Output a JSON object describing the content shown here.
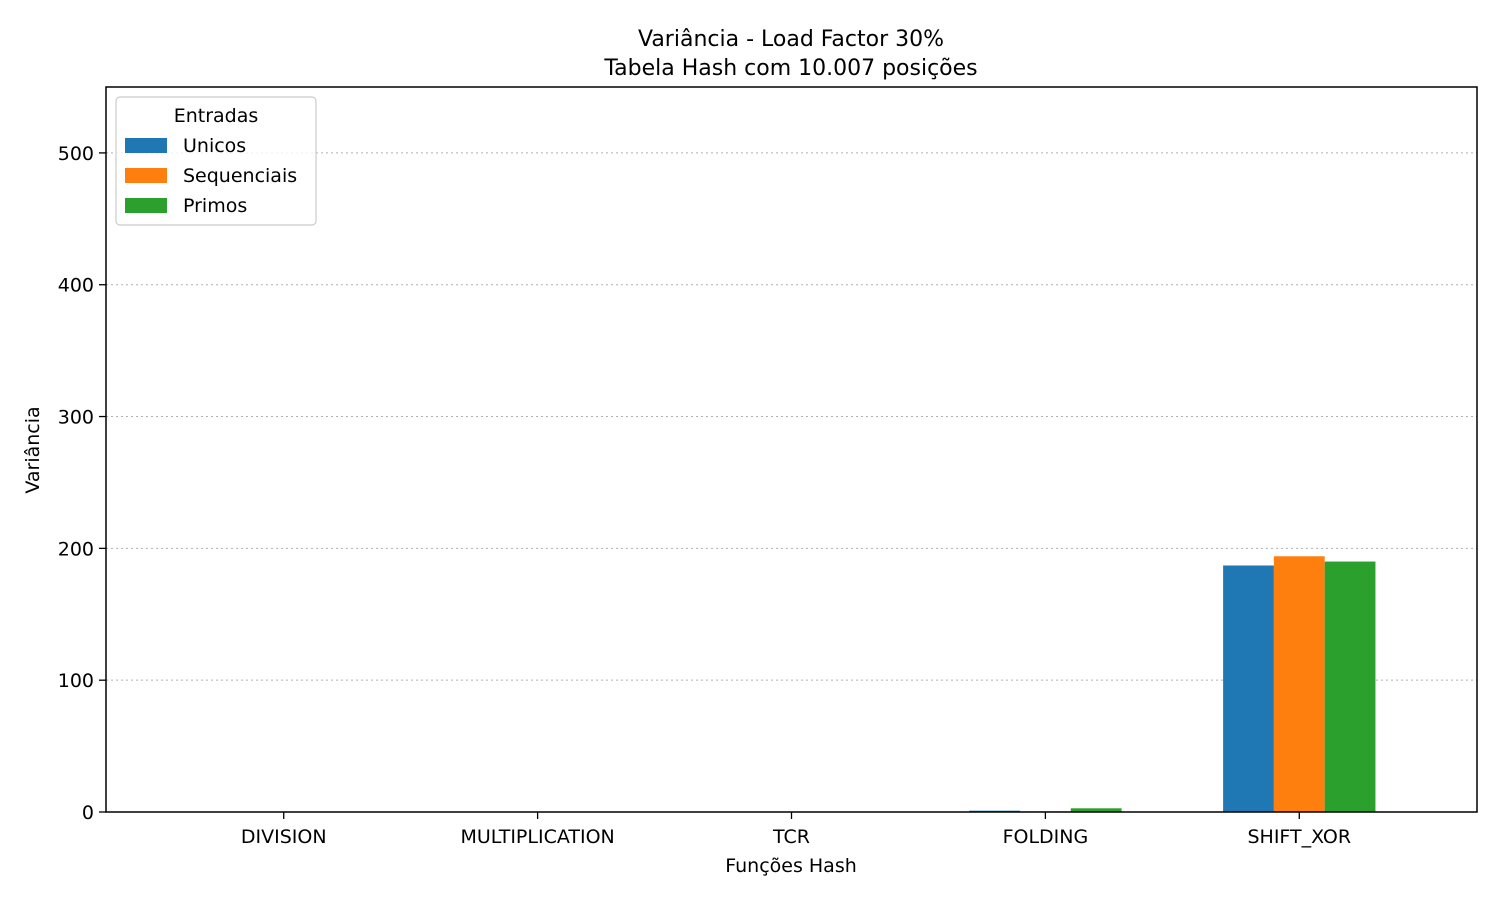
{
  "chart_data": {
    "type": "bar",
    "title": "Variância - Load Factor 30%",
    "subtitle": "Tabela Hash com 10.007 posições",
    "xlabel": "Funções Hash",
    "ylabel": "Variância",
    "ylim": [
      0,
      550
    ],
    "yticks": [
      0,
      100,
      200,
      300,
      400,
      500
    ],
    "grid": "y-dotted",
    "categories": [
      "DIVISION",
      "MULTIPLICATION",
      "TCR",
      "FOLDING",
      "SHIFT_XOR"
    ],
    "legend": {
      "title": "Entradas",
      "placement": "top-left"
    },
    "series": [
      {
        "name": "Unicos",
        "color": "#1f77b4",
        "values": [
          0.3,
          0.3,
          0.3,
          1.0,
          187
        ]
      },
      {
        "name": "Sequenciais",
        "color": "#ff7f0e",
        "values": [
          0.0,
          0.0,
          0.0,
          0.5,
          194
        ]
      },
      {
        "name": "Primos",
        "color": "#2ca02c",
        "values": [
          0.3,
          0.3,
          0.3,
          2.8,
          190
        ]
      }
    ]
  }
}
